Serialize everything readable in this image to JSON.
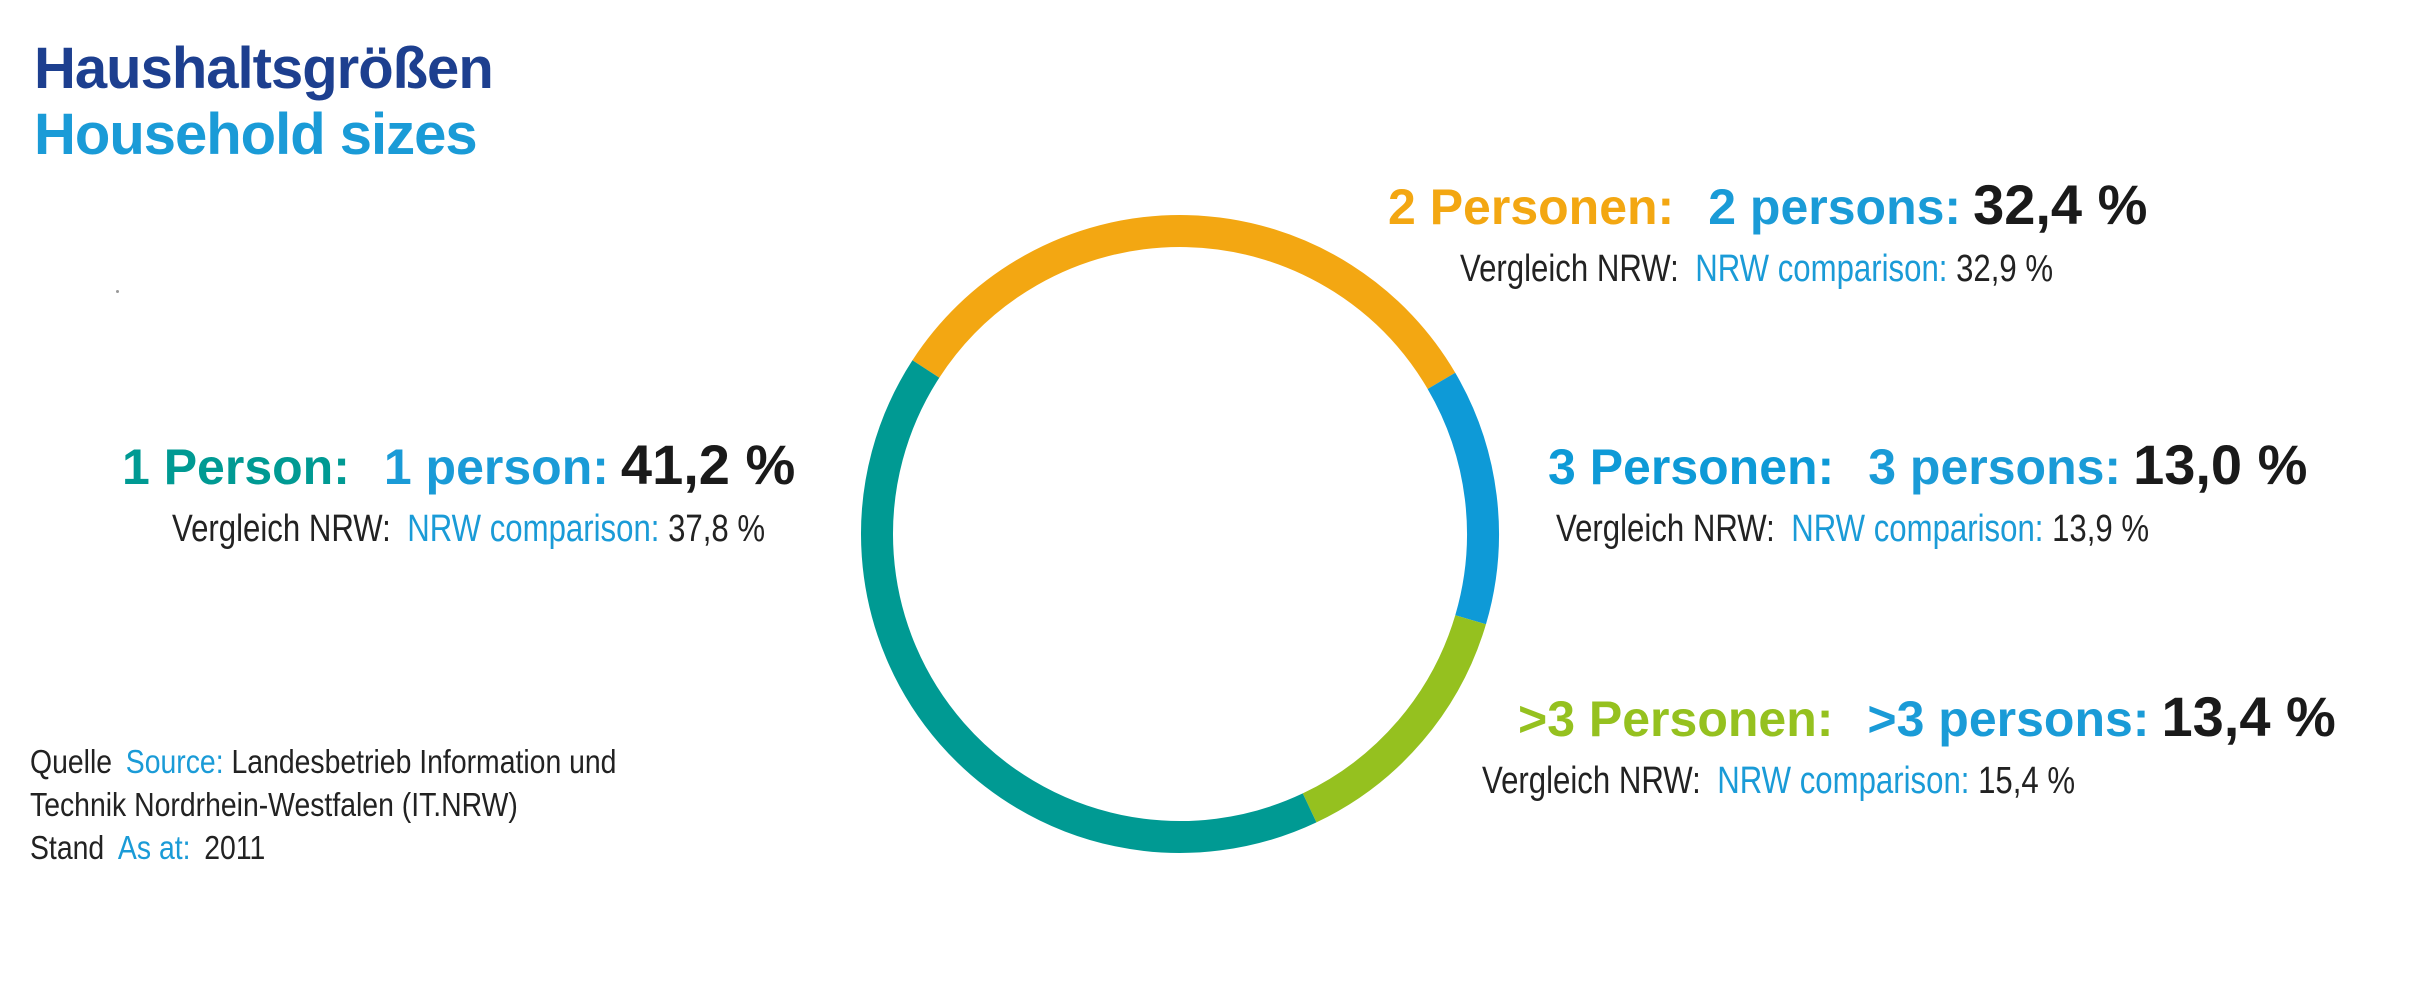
{
  "title": {
    "de": "Haushaltsgrößen",
    "en": "Household sizes"
  },
  "chart_data": {
    "type": "pie",
    "style": "donut",
    "slices": [
      {
        "key": "p2",
        "label_de": "2 Personen:",
        "label_en": "2 persons:",
        "value_text": "32,4 %",
        "value": 32.4,
        "nrw_text": "32,9 %",
        "nrw": 32.9,
        "color": "#f3a712"
      },
      {
        "key": "p3",
        "label_de": "3 Personen:",
        "label_en": "3 persons:",
        "value_text": "13,0 %",
        "value": 13.0,
        "nrw_text": "13,9 %",
        "nrw": 13.9,
        "color": "#0e9ad7"
      },
      {
        "key": "p3plus",
        "label_de": ">3 Personen:",
        "label_en": ">3 persons:",
        "value_text": "13,4 %",
        "value": 13.4,
        "nrw_text": "15,4 %",
        "nrw": 15.4,
        "color": "#95c11f"
      },
      {
        "key": "p1",
        "label_de": "1 Person:",
        "label_en": "1 person:",
        "value_text": "41,2 %",
        "value": 41.2,
        "nrw_text": "37,8 %",
        "nrw": 37.8,
        "color": "#009a93"
      }
    ],
    "comparison": {
      "de": "Vergleich NRW:",
      "en": "NRW comparison:"
    }
  },
  "source": {
    "label_de": "Quelle",
    "label_en": "Source:",
    "text_line1": "Landesbetrieb Information und",
    "text_line2": "Technik Nordrhein-Westfalen (IT.NRW)",
    "stand_de": "Stand",
    "stand_en": "As at:",
    "year": "2011"
  }
}
